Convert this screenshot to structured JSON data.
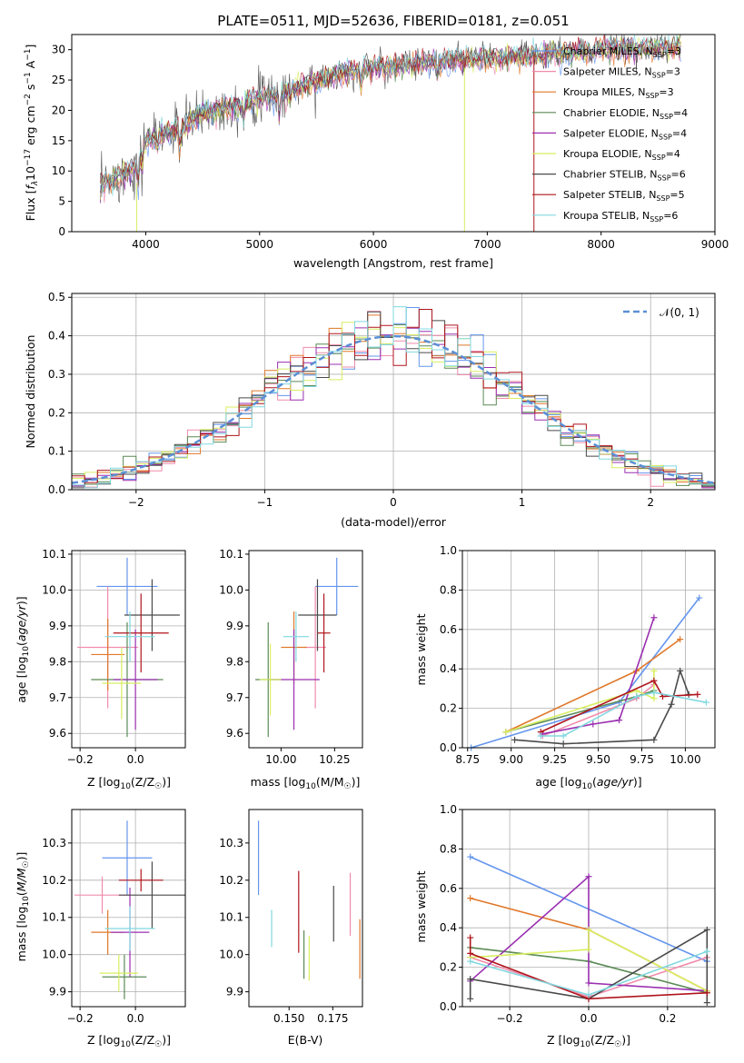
{
  "colors": {
    "chabrier_miles": "#6495ed",
    "salpeter_miles": "#f08cac",
    "kroupa_miles": "#e0782a",
    "chabrier_elodie": "#5a8a55",
    "salpeter_elodie": "#9a2fb0",
    "kroupa_elodie": "#d8ee60",
    "chabrier_stelib": "#4a4a4a",
    "salpeter_stelib": "#b0141c",
    "kroupa_stelib": "#80d8e0",
    "normal": "#5b8fd6"
  },
  "chart_data": [
    {
      "type": "line",
      "title": "PLATE=0511, MJD=52636, FIBERID=0181, z=0.051",
      "xlabel": "wavelength [Angstrom, rest frame]",
      "ylabel_prefix": "Flux [",
      "ylabel_flambda": "f",
      "ylabel_lambda_sub": "λ",
      "ylabel_mid": "10",
      "ylabel_exp": "−17",
      "ylabel_suffix": " erg cm",
      "ylabel_exp2": "−2",
      "ylabel_s": " s",
      "ylabel_exp3": "−1",
      "ylabel_a": " A",
      "ylabel_exp4": "−1",
      "ylabel_end": "]",
      "xlim": [
        3350,
        9000
      ],
      "ylim": [
        0,
        32.5
      ],
      "xticks": [
        "4000",
        "5000",
        "6000",
        "7000",
        "8000",
        "9000"
      ],
      "yticks": [
        "0",
        "5",
        "10",
        "15",
        "20",
        "25",
        "30"
      ],
      "continuum_anchors": [
        [
          3600,
          7.5
        ],
        [
          3900,
          10.5
        ],
        [
          4000,
          15
        ],
        [
          4300,
          17
        ],
        [
          4500,
          19.5
        ],
        [
          4800,
          21
        ],
        [
          5200,
          23
        ],
        [
          5600,
          25.5
        ],
        [
          6000,
          27
        ],
        [
          6500,
          28
        ],
        [
          7000,
          28.5
        ],
        [
          7400,
          29
        ],
        [
          8000,
          30
        ],
        [
          8700,
          30.5
        ]
      ],
      "legend": [
        {
          "label": "Chabrier MILES, N",
          "sub": "SSP",
          "val": "=3",
          "color_key": "chabrier_miles"
        },
        {
          "label": "Salpeter MILES, N",
          "sub": "SSP",
          "val": "=3",
          "color_key": "salpeter_miles"
        },
        {
          "label": "Kroupa MILES, N",
          "sub": "SSP",
          "val": "=3",
          "color_key": "kroupa_miles"
        },
        {
          "label": "Chabrier ELODIE, N",
          "sub": "SSP",
          "val": "=4",
          "color_key": "chabrier_elodie"
        },
        {
          "label": "Salpeter ELODIE, N",
          "sub": "SSP",
          "val": "=4",
          "color_key": "salpeter_elodie"
        },
        {
          "label": "Kroupa ELODIE, N",
          "sub": "SSP",
          "val": "=4",
          "color_key": "kroupa_elodie"
        },
        {
          "label": "Chabrier STELIB, N",
          "sub": "SSP",
          "val": "=6",
          "color_key": "chabrier_stelib"
        },
        {
          "label": "Salpeter STELIB, N",
          "sub": "SSP",
          "val": "=5",
          "color_key": "salpeter_stelib"
        },
        {
          "label": "Kroupa STELIB, N",
          "sub": "SSP",
          "val": "=6",
          "color_key": "kroupa_stelib"
        }
      ]
    },
    {
      "type": "step",
      "xlabel": "(data-model)/error",
      "ylabel": "Normed distribution",
      "xlim": [
        -2.5,
        2.5
      ],
      "ylim": [
        0,
        0.51
      ],
      "xticks": [
        "−2",
        "−1",
        "0",
        "1",
        "2"
      ],
      "xtick_values": [
        -2,
        -1,
        0,
        1,
        2
      ],
      "yticks": [
        "0.0",
        "0.1",
        "0.2",
        "0.3",
        "0.4",
        "0.5"
      ],
      "legend_label": "𝒩(0, 1)",
      "bin_width": 0.1
    },
    {
      "type": "errorbar",
      "xlabel_prefix": "Z [log",
      "xlabel_sub": "10",
      "xlabel_suffix": "(Z/Z",
      "xlabel_end": ")]",
      "ylabel": "age  [log₁₀(age/yr)]",
      "xlim": [
        -0.23,
        0.18
      ],
      "ylim": [
        9.56,
        10.11
      ],
      "xticks": [
        "−0.2",
        "0.0"
      ],
      "xtick_values": [
        -0.2,
        0.0
      ],
      "yticks": [
        "9.6",
        "9.7",
        "9.8",
        "9.9",
        "10.0",
        "10.1"
      ],
      "ytick_values": [
        9.6,
        9.7,
        9.8,
        9.9,
        10.0,
        10.1
      ],
      "points": [
        {
          "key": "chabrier_miles",
          "x": -0.03,
          "y": 10.01,
          "xe": 0.11,
          "ye": 0.08
        },
        {
          "key": "salpeter_miles",
          "x": -0.1,
          "y": 9.84,
          "xe": 0.11,
          "ye": 0.17
        },
        {
          "key": "kroupa_miles",
          "x": -0.1,
          "y": 9.82,
          "xe": 0.06,
          "ye": 0.1
        },
        {
          "key": "chabrier_elodie",
          "x": -0.03,
          "y": 9.75,
          "xe": 0.13,
          "ye": 0.16
        },
        {
          "key": "salpeter_elodie",
          "x": 0.0,
          "y": 9.75,
          "xe": 0.08,
          "ye": 0.14
        },
        {
          "key": "kroupa_elodie",
          "x": -0.05,
          "y": 9.74,
          "xe": 0.07,
          "ye": 0.1
        },
        {
          "key": "chabrier_stelib",
          "x": 0.06,
          "y": 9.93,
          "xe": 0.1,
          "ye": 0.1
        },
        {
          "key": "salpeter_stelib",
          "x": 0.02,
          "y": 9.88,
          "xe": 0.1,
          "ye": 0.11
        },
        {
          "key": "kroupa_stelib",
          "x": -0.02,
          "y": 9.87,
          "xe": 0.09,
          "ye": 0.07
        }
      ]
    },
    {
      "type": "errorbar",
      "xlabel_prefix": "mass [log",
      "xlabel_sub": "10",
      "xlabel_suffix": "(M/M",
      "xlabel_end": ")]",
      "xlim": [
        9.85,
        10.38
      ],
      "ylim": [
        9.56,
        10.11
      ],
      "xticks": [
        "10.00",
        "10.25"
      ],
      "xtick_values": [
        10.0,
        10.25
      ],
      "yticks": [
        "9.6",
        "9.7",
        "9.8",
        "9.9",
        "10.0",
        "10.1"
      ],
      "ytick_values": [
        9.6,
        9.7,
        9.8,
        9.9,
        10.0,
        10.1
      ],
      "points": [
        {
          "key": "chabrier_miles",
          "x": 10.26,
          "y": 10.01,
          "xe": 0.1,
          "ye": 0.08
        },
        {
          "key": "salpeter_miles",
          "x": 10.16,
          "y": 9.84,
          "xe": 0.05,
          "ye": 0.17
        },
        {
          "key": "kroupa_miles",
          "x": 10.06,
          "y": 9.84,
          "xe": 0.06,
          "ye": 0.1
        },
        {
          "key": "chabrier_elodie",
          "x": 9.94,
          "y": 9.75,
          "xe": 0.06,
          "ye": 0.16
        },
        {
          "key": "salpeter_elodie",
          "x": 10.06,
          "y": 9.75,
          "xe": 0.12,
          "ye": 0.14
        },
        {
          "key": "kroupa_elodie",
          "x": 9.95,
          "y": 9.75,
          "xe": 0.05,
          "ye": 0.1
        },
        {
          "key": "chabrier_stelib",
          "x": 10.17,
          "y": 9.93,
          "xe": 0.09,
          "ye": 0.1
        },
        {
          "key": "salpeter_stelib",
          "x": 10.2,
          "y": 9.88,
          "xe": 0.03,
          "ye": 0.11
        },
        {
          "key": "kroupa_stelib",
          "x": 10.07,
          "y": 9.87,
          "xe": 0.06,
          "ye": 0.07
        }
      ]
    },
    {
      "type": "line",
      "xlabel": "age  [log₁₀(age/yr)]",
      "ylabel": "mass weight",
      "xlim": [
        8.72,
        10.17
      ],
      "ylim": [
        0,
        1.0
      ],
      "xticks": [
        "8.75",
        "9.00",
        "9.25",
        "9.50",
        "9.75",
        "10.00"
      ],
      "xtick_values": [
        8.75,
        9.0,
        9.25,
        9.5,
        9.75,
        10.0
      ],
      "yticks": [
        "0.0",
        "0.2",
        "0.4",
        "0.6",
        "0.8",
        "1.0"
      ],
      "ytick_values": [
        0,
        0.2,
        0.4,
        0.6,
        0.8,
        1.0
      ],
      "series": [
        {
          "key": "chabrier_miles",
          "x": [
            8.77,
            9.62,
            10.08
          ],
          "y": [
            0.0,
            0.23,
            0.76
          ]
        },
        {
          "key": "kroupa_miles",
          "x": [
            8.97,
            9.72,
            9.97
          ],
          "y": [
            0.08,
            0.39,
            0.55
          ]
        },
        {
          "key": "salpeter_miles",
          "x": [
            9.18,
            9.72,
            9.82
          ],
          "y": [
            0.06,
            0.25,
            0.32
          ]
        },
        {
          "key": "chabrier_elodie",
          "x": [
            8.97,
            9.72,
            9.82
          ],
          "y": [
            0.08,
            0.26,
            0.29
          ]
        },
        {
          "key": "salpeter_elodie",
          "x": [
            9.18,
            9.47,
            9.62,
            9.82
          ],
          "y": [
            0.07,
            0.12,
            0.14,
            0.66
          ]
        },
        {
          "key": "kroupa_elodie",
          "x": [
            8.97,
            9.72,
            9.82,
            9.82
          ],
          "y": [
            0.08,
            0.29,
            0.25,
            0.39
          ]
        },
        {
          "key": "chabrier_stelib",
          "x": [
            9.02,
            9.3,
            9.82,
            9.92,
            9.97,
            10.02
          ],
          "y": [
            0.04,
            0.02,
            0.04,
            0.22,
            0.39,
            0.27
          ]
        },
        {
          "key": "salpeter_stelib",
          "x": [
            9.17,
            9.82,
            9.87,
            10.07
          ],
          "y": [
            0.08,
            0.34,
            0.26,
            0.27
          ]
        },
        {
          "key": "kroupa_stelib",
          "x": [
            9.17,
            9.3,
            9.72,
            9.82,
            10.12
          ],
          "y": [
            0.06,
            0.06,
            0.26,
            0.28,
            0.23
          ]
        }
      ]
    },
    {
      "type": "errorbar",
      "xlabel_prefix": "Z [log",
      "xlabel_sub": "10",
      "xlabel_suffix": "(Z/Z",
      "xlabel_end": ")]",
      "ylabel": "mass [log₁₀(M/M☉)]",
      "xlim": [
        -0.23,
        0.18
      ],
      "ylim": [
        9.86,
        10.39
      ],
      "xticks": [
        "−0.2",
        "0.0"
      ],
      "xtick_values": [
        -0.2,
        0.0
      ],
      "yticks": [
        "9.9",
        "10.0",
        "10.1",
        "10.2",
        "10.3"
      ],
      "ytick_values": [
        9.9,
        10.0,
        10.1,
        10.2,
        10.3
      ],
      "points": [
        {
          "key": "chabrier_miles",
          "x": -0.03,
          "y": 10.26,
          "xe": 0.09,
          "ye": 0.1
        },
        {
          "key": "salpeter_miles",
          "x": -0.12,
          "y": 10.16,
          "xe": 0.1,
          "ye": 0.05
        },
        {
          "key": "kroupa_miles",
          "x": -0.1,
          "y": 10.06,
          "xe": 0.06,
          "ye": 0.06
        },
        {
          "key": "chabrier_elodie",
          "x": -0.04,
          "y": 9.94,
          "xe": 0.08,
          "ye": 0.06
        },
        {
          "key": "salpeter_elodie",
          "x": -0.02,
          "y": 10.06,
          "xe": 0.07,
          "ye": 0.12
        },
        {
          "key": "kroupa_elodie",
          "x": -0.06,
          "y": 9.95,
          "xe": 0.07,
          "ye": 0.05
        },
        {
          "key": "chabrier_stelib",
          "x": 0.06,
          "y": 10.16,
          "xe": 0.12,
          "ye": 0.09
        },
        {
          "key": "salpeter_stelib",
          "x": 0.02,
          "y": 10.2,
          "xe": 0.08,
          "ye": 0.03
        },
        {
          "key": "kroupa_stelib",
          "x": -0.02,
          "y": 10.07,
          "xe": 0.09,
          "ye": 0.06
        }
      ]
    },
    {
      "type": "errorbar",
      "xlabel": "E(B-V)",
      "xlim": [
        0.127,
        0.192
      ],
      "ylim": [
        9.86,
        10.39
      ],
      "xticks": [
        "0.150",
        "0.175"
      ],
      "xtick_values": [
        0.15,
        0.175
      ],
      "yticks": [
        "9.9",
        "10.0",
        "10.1",
        "10.2",
        "10.3"
      ],
      "ytick_values": [
        9.9,
        10.0,
        10.1,
        10.2,
        10.3
      ],
      "points": [
        {
          "key": "chabrier_miles",
          "x": 0.1325,
          "y": 10.26,
          "xe": 0,
          "ye": 0.1
        },
        {
          "key": "kroupa_stelib",
          "x": 0.14,
          "y": 10.07,
          "xe": 0,
          "ye": 0.05
        },
        {
          "key": "salpeter_stelib",
          "x": 0.1555,
          "y": 10.115,
          "xe": 0,
          "ye": 0.11
        },
        {
          "key": "chabrier_elodie",
          "x": 0.1585,
          "y": 10.0,
          "xe": 0,
          "ye": 0.065
        },
        {
          "key": "kroupa_elodie",
          "x": 0.1615,
          "y": 9.99,
          "xe": 0,
          "ye": 0.06
        },
        {
          "key": "chabrier_stelib",
          "x": 0.1755,
          "y": 10.11,
          "xe": 0,
          "ye": 0.075
        },
        {
          "key": "salpeter_miles",
          "x": 0.185,
          "y": 10.135,
          "xe": 0,
          "ye": 0.085
        },
        {
          "key": "kroupa_miles",
          "x": 0.1905,
          "y": 10.015,
          "xe": 0,
          "ye": 0.08
        }
      ]
    },
    {
      "type": "line",
      "xlabel_prefix": "Z [log",
      "xlabel_sub": "10",
      "xlabel_suffix": "(Z/Z",
      "xlabel_end": ")]",
      "ylabel": "mass weight",
      "xlim": [
        -0.32,
        0.32
      ],
      "ylim": [
        0,
        1.0
      ],
      "xticks": [
        "−0.2",
        "0.0",
        "0.2"
      ],
      "xtick_values": [
        -0.2,
        0.0,
        0.2
      ],
      "yticks": [
        "0.0",
        "0.2",
        "0.4",
        "0.6",
        "0.8",
        "1.0"
      ],
      "ytick_values": [
        0,
        0.2,
        0.4,
        0.6,
        0.8,
        1.0
      ],
      "series": [
        {
          "key": "chabrier_miles",
          "x": [
            -0.3,
            0.3
          ],
          "y": [
            0.76,
            0.23
          ]
        },
        {
          "key": "kroupa_miles",
          "x": [
            -0.3,
            0.0,
            0.3
          ],
          "y": [
            0.55,
            0.39,
            0.08
          ]
        },
        {
          "key": "salpeter_miles",
          "x": [
            -0.3,
            0.0,
            0.3
          ],
          "y": [
            0.25,
            0.05,
            0.25
          ]
        },
        {
          "key": "chabrier_elodie",
          "x": [
            -0.3,
            0.0,
            0.3
          ],
          "y": [
            0.3,
            0.23,
            0.07
          ]
        },
        {
          "key": "salpeter_elodie",
          "x": [
            -0.3,
            0.0,
            0.0,
            0.3
          ],
          "y": [
            0.13,
            0.66,
            0.12,
            0.08
          ]
        },
        {
          "key": "kroupa_elodie",
          "x": [
            -0.3,
            0.0,
            0.0,
            0.3
          ],
          "y": [
            0.25,
            0.29,
            0.39,
            0.08
          ]
        },
        {
          "key": "chabrier_stelib",
          "x": [
            -0.3,
            -0.3,
            0.0,
            0.3,
            0.3
          ],
          "y": [
            0.04,
            0.14,
            0.04,
            0.39,
            0.02
          ]
        },
        {
          "key": "salpeter_stelib",
          "x": [
            -0.3,
            -0.3,
            0.0,
            0.3
          ],
          "y": [
            0.35,
            0.27,
            0.04,
            0.07
          ]
        },
        {
          "key": "kroupa_stelib",
          "x": [
            -0.3,
            0.0,
            0.3
          ],
          "y": [
            0.23,
            0.06,
            0.28
          ]
        }
      ]
    }
  ]
}
